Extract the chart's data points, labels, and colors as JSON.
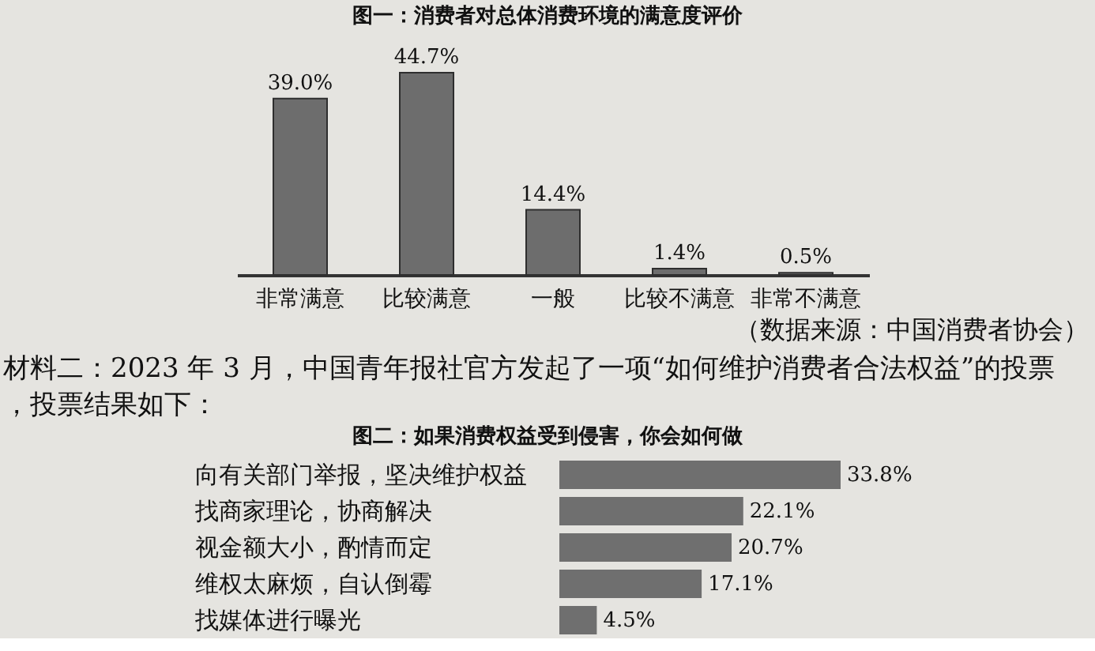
{
  "chart_data": [
    {
      "type": "bar",
      "title": "图一：消费者对总体消费环境的满意度评价",
      "categories": [
        "非常满意",
        "比较满意",
        "一般",
        "比较不满意",
        "非常不满意"
      ],
      "values": [
        39.0,
        44.7,
        14.4,
        1.4,
        0.5
      ],
      "value_labels": [
        "39.0%",
        "44.7%",
        "14.4%",
        "1.4%",
        "0.5%"
      ],
      "color": "#6d6d6d",
      "tick_labels": "x",
      "annotations": [
        "（数据来源：中国消费者协会）"
      ]
    },
    {
      "type": "bar",
      "orientation": "horizontal",
      "title": "图二：如果消费权益受到侵害，你会如何做",
      "categories": [
        "向有关部门举报，坚决维护权益",
        "找商家理论，协商解决",
        "视金额大小，酌情而定",
        "维权太麻烦，自认倒霉",
        "找媒体进行曝光"
      ],
      "values": [
        33.8,
        22.1,
        20.7,
        17.1,
        4.5
      ],
      "value_labels": [
        "33.8%",
        "22.1%",
        "20.7%",
        "17.1%",
        "4.5%"
      ],
      "color": "#6f6f6f",
      "tick_labels": "y",
      "annotations": [
        "材料二：2023 年 3 月，中国青年报社官方发起了一项“如何维护消费者合法权益”的投票，投票结果如下："
      ]
    }
  ]
}
